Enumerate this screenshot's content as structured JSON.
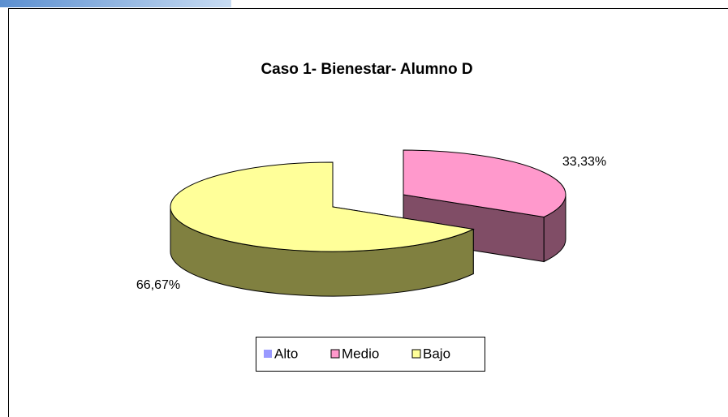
{
  "chart_data": {
    "type": "pie",
    "title": "Caso 1- Bienestar- Alumno D",
    "categories": [
      "Alto",
      "Medio",
      "Bajo"
    ],
    "values": [
      0,
      33.33,
      66.67
    ],
    "value_labels": [
      null,
      "33,33%",
      "66,67%"
    ],
    "colors": [
      "#9999ff",
      "#ff99cc",
      "#ffff99"
    ],
    "side_colors": [
      "#4d4d80",
      "#804d66",
      "#808040"
    ],
    "legend": "bottom"
  }
}
